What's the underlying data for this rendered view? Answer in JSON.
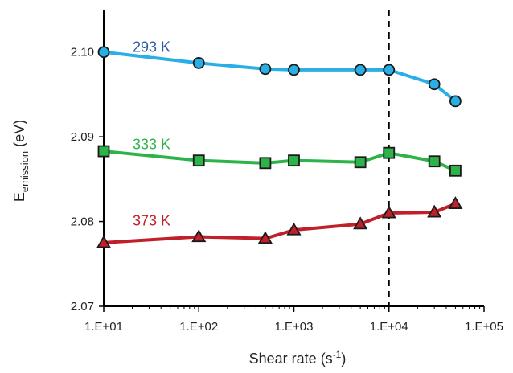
{
  "chart_data": {
    "type": "line",
    "xscale": "log",
    "xlim": [
      10,
      100000
    ],
    "ylim": [
      2.07,
      2.105
    ],
    "xticks": [
      "1.E+01",
      "1.E+02",
      "1.E+03",
      "1.E+04",
      "1.E+05"
    ],
    "yticks": [
      "2.07",
      "2.08",
      "2.09",
      "2.10"
    ],
    "xlabel": "Shear rate (s",
    "xlabel_sup": "-1",
    "xlabel_end": ")",
    "ylabel": "E",
    "ylabel_sub": "emission",
    "ylabel_end": " (eV)",
    "vline_x": 10000,
    "grid": false,
    "series": [
      {
        "name": "293 K",
        "color": "#29aee5",
        "label_color": "#2b5aa6",
        "marker": "circle",
        "x": [
          10,
          100,
          500,
          1000,
          5000,
          10000,
          30000,
          50000
        ],
        "y": [
          2.1,
          2.0987,
          2.098,
          2.0979,
          2.0979,
          2.0979,
          2.0962,
          2.0942
        ]
      },
      {
        "name": "333 K",
        "color": "#2db34a",
        "label_color": "#2db34a",
        "marker": "square",
        "x": [
          10,
          100,
          500,
          1000,
          5000,
          10000,
          30000,
          50000
        ],
        "y": [
          2.0883,
          2.0872,
          2.0869,
          2.0872,
          2.087,
          2.0881,
          2.0871,
          2.086
        ]
      },
      {
        "name": "373 K",
        "color": "#c0202a",
        "label_color": "#c0202a",
        "marker": "triangle",
        "x": [
          10,
          100,
          500,
          1000,
          5000,
          10000,
          30000,
          50000
        ],
        "y": [
          2.0775,
          2.0782,
          2.078,
          2.079,
          2.0797,
          2.081,
          2.0811,
          2.0821
        ]
      }
    ]
  }
}
